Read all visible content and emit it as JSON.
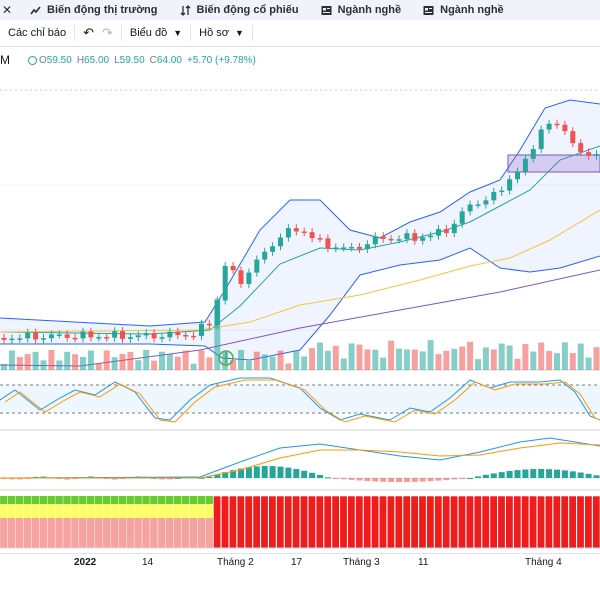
{
  "tabs": [
    {
      "label": "Biến động thị trường",
      "icon": "chart-line-icon"
    },
    {
      "label": "Biến động cổ phiếu",
      "icon": "sort-arrows-icon"
    },
    {
      "label": "Ngành nghề",
      "icon": "news-icon"
    },
    {
      "label": "Ngành nghề",
      "icon": "news-icon"
    }
  ],
  "toolbar": {
    "indicators_label": "Các chỉ báo",
    "chart_label": "Biểu đồ",
    "profile_label": "Hồ sơ"
  },
  "legend": {
    "interval": "M",
    "open_label": "O",
    "open": "59.50",
    "high_label": "H",
    "high": "65.00",
    "low_label": "L",
    "low": "59.50",
    "close_label": "C",
    "close": "64.00",
    "change": "+5.70 (+9.78%)"
  },
  "x_axis": {
    "labels": [
      "2022",
      "14",
      "Tháng 2",
      "17",
      "Tháng 3",
      "11",
      "Tháng 4"
    ]
  },
  "colors": {
    "up": "#26a69a",
    "down": "#ef5350",
    "band": "#2962ff",
    "ma_fast": "#26a69a",
    "ma_slow": "#f4c542",
    "ma_long": "#7e57c2"
  },
  "chart_data": {
    "type": "candlestick",
    "title": "",
    "indicator_panes": [
      "volume",
      "stochastic",
      "macd",
      "heatmap"
    ]
  }
}
